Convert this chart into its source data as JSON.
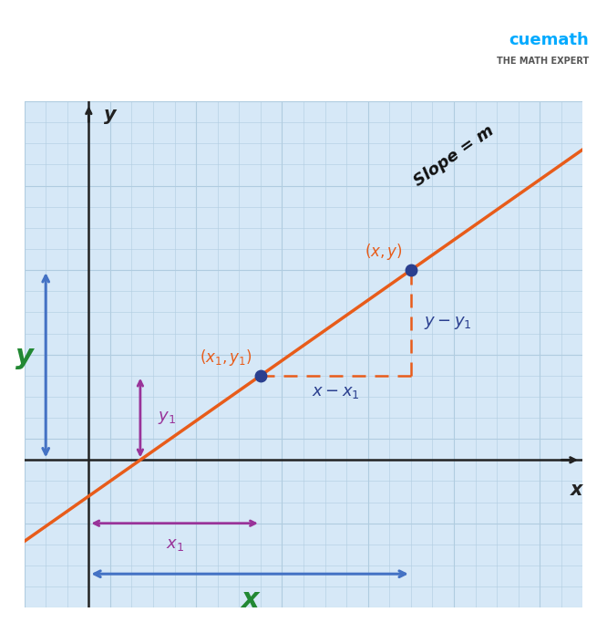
{
  "bg_outer": "#ffffff",
  "bg_color": "#d6e8f7",
  "grid_color": "#b0cce0",
  "axis_color": "#222222",
  "line_color": "#e85c1a",
  "point_color": "#2a3f8f",
  "dashed_color": "#e85c1a",
  "arrow_blue": "#4472c4",
  "arrow_purple": "#993399",
  "text_orange": "#e85c1a",
  "text_blue": "#2a3f8f",
  "text_green": "#228833",
  "text_purple": "#993399",
  "slope_text_color": "#111111",
  "x1_data": 4.0,
  "y1_data": 2.0,
  "x2_data": 7.5,
  "y2_data": 4.5,
  "xlim": [
    -1.5,
    11.5
  ],
  "ylim": [
    -3.5,
    8.5
  ],
  "figsize": [
    6.66,
    6.94
  ],
  "dpi": 100
}
